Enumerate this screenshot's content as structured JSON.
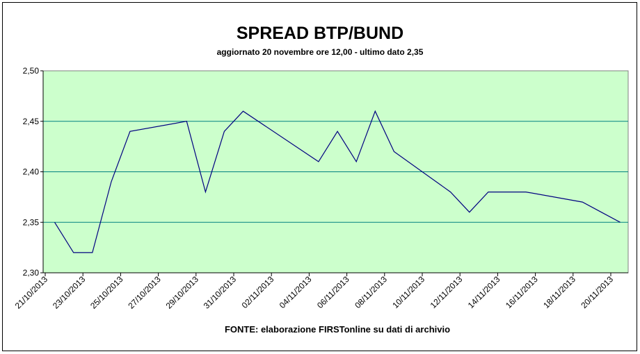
{
  "chart_data": {
    "type": "line",
    "title": "SPREAD BTP/BUND",
    "subtitle": "aggiornato 20 novembre ore 12,00 - ultimo dato 2,35",
    "source": "FONTE: elaborazione FIRSTonline su dati di archivio",
    "x": [
      "21/10/2013",
      "22/10/2013",
      "23/10/2013",
      "24/10/2013",
      "25/10/2013",
      "28/10/2013",
      "29/10/2013",
      "30/10/2013",
      "31/10/2013",
      "04/11/2013",
      "05/11/2013",
      "06/11/2013",
      "07/11/2013",
      "08/11/2013",
      "11/11/2013",
      "12/11/2013",
      "13/11/2013",
      "14/11/2013",
      "15/11/2013",
      "18/11/2013",
      "19/11/2013",
      "20/11/2013"
    ],
    "series": [
      {
        "color": "#000080",
        "values": [
          2.35,
          2.32,
          2.32,
          2.39,
          2.44,
          2.45,
          2.38,
          2.44,
          2.46,
          2.41,
          2.44,
          2.41,
          2.46,
          2.42,
          2.38,
          2.36,
          2.38,
          2.38,
          2.38,
          2.37,
          2.36,
          2.35
        ]
      }
    ],
    "xticks": [
      "21/10/2013",
      "23/10/2013",
      "25/10/2013",
      "27/10/2013",
      "29/10/2013",
      "31/10/2013",
      "02/11/2013",
      "04/11/2013",
      "06/11/2013",
      "08/11/2013",
      "10/11/2013",
      "12/11/2013",
      "14/11/2013",
      "16/11/2013",
      "18/11/2013",
      "20/11/2013"
    ],
    "ylim": [
      2.3,
      2.5
    ],
    "yticks": [
      {
        "value": 2.3,
        "label": "2,30"
      },
      {
        "value": 2.35,
        "label": "2,35"
      },
      {
        "value": 2.4,
        "label": "2,40"
      },
      {
        "value": 2.45,
        "label": "2,45"
      },
      {
        "value": 2.5,
        "label": "2,50"
      }
    ],
    "grid": true
  }
}
